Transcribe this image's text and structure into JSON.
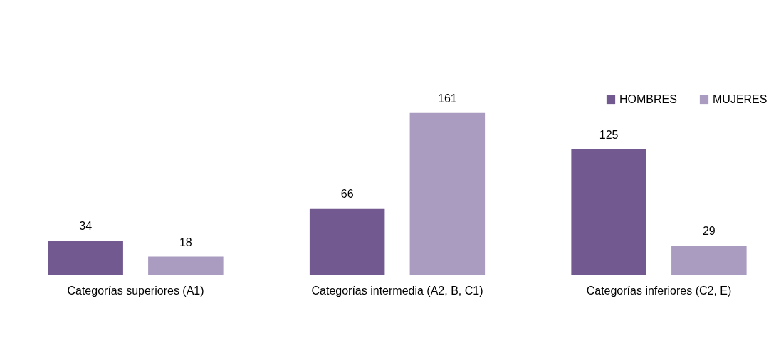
{
  "chart_data": {
    "type": "bar",
    "categories": [
      "Categorías superiores (A1)",
      "Categorías intermedia (A2, B, C1)",
      "Categorías inferiores (C2, E)"
    ],
    "series": [
      {
        "name": "HOMBRES",
        "color": "#725a91",
        "values": [
          34,
          66,
          125
        ]
      },
      {
        "name": "MUJERES",
        "color": "#aa9bc1",
        "values": [
          18,
          161,
          29
        ]
      }
    ],
    "data_labels": true,
    "legend": "top right"
  }
}
